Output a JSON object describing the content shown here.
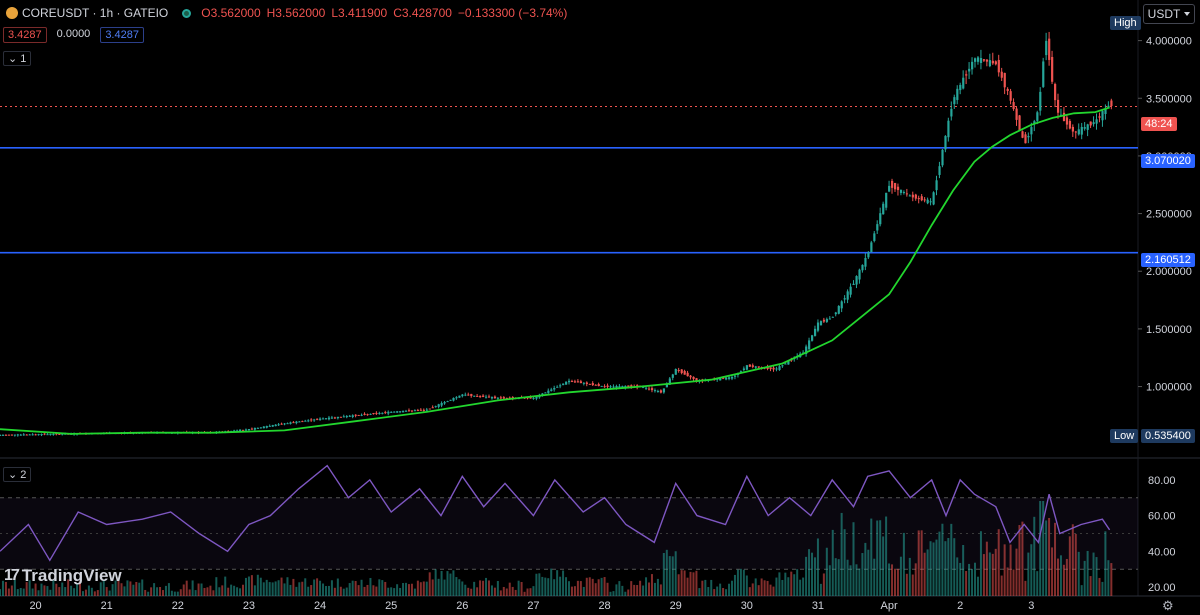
{
  "header": {
    "symbol": "COREUSDT · 1h · GATEIO",
    "open": "O3.562000",
    "high": "H3.562000",
    "low": "L3.411900",
    "close": "C3.428700",
    "change": "−0.133300 (−3.74%)",
    "values": [
      "3.4287",
      "0.0000",
      "3.4287"
    ],
    "pane1_label": "1",
    "pane2_label": "2"
  },
  "currency_label": "USDT",
  "brand": "TradingView",
  "price_tags": {
    "high_label": "High",
    "low_label": "Low",
    "low_value": "0.535400",
    "current_label": "48:24",
    "level1": "3.070020",
    "level2": "2.160512"
  },
  "colors": {
    "up": "#26a69a",
    "down": "#ef5350",
    "ma": "#22d62e",
    "rsi": "#7e57c2",
    "level": "#2962ff"
  },
  "chart_data": [
    {
      "type": "candlestick",
      "x_ticks": [
        "20",
        "21",
        "22",
        "23",
        "24",
        "25",
        "26",
        "27",
        "28",
        "29",
        "30",
        "31",
        "Apr",
        "2",
        "3"
      ],
      "y_ticks": [
        "4.000000",
        "3.500000",
        "3.000000",
        "2.500000",
        "2.000000",
        "1.500000",
        "1.000000"
      ],
      "ylim": [
        0.45,
        4.3
      ],
      "close_path": [
        [
          19.5,
          0.58
        ],
        [
          20.5,
          0.59
        ],
        [
          21.5,
          0.6
        ],
        [
          22.5,
          0.6
        ],
        [
          23.0,
          0.63
        ],
        [
          23.5,
          0.68
        ],
        [
          24.0,
          0.72
        ],
        [
          24.5,
          0.75
        ],
        [
          25.0,
          0.78
        ],
        [
          25.5,
          0.8
        ],
        [
          26.0,
          0.93
        ],
        [
          26.5,
          0.9
        ],
        [
          27.0,
          0.9
        ],
        [
          27.5,
          1.05
        ],
        [
          28.0,
          1.0
        ],
        [
          28.5,
          1.0
        ],
        [
          28.8,
          0.95
        ],
        [
          29.0,
          1.15
        ],
        [
          29.3,
          1.05
        ],
        [
          29.8,
          1.08
        ],
        [
          30.0,
          1.18
        ],
        [
          30.4,
          1.15
        ],
        [
          30.8,
          1.3
        ],
        [
          31.0,
          1.55
        ],
        [
          31.2,
          1.6
        ],
        [
          31.5,
          1.9
        ],
        [
          31.7,
          2.15
        ],
        [
          32.0,
          2.75
        ],
        [
          32.3,
          2.65
        ],
        [
          32.6,
          2.6
        ],
        [
          32.9,
          3.5
        ],
        [
          33.2,
          3.85
        ],
        [
          33.5,
          3.8
        ],
        [
          33.7,
          3.5
        ],
        [
          33.9,
          3.1
        ],
        [
          34.1,
          3.4
        ],
        [
          34.2,
          4.05
        ],
        [
          34.35,
          3.4
        ],
        [
          34.6,
          3.2
        ],
        [
          34.9,
          3.3
        ],
        [
          35.1,
          3.45
        ]
      ],
      "ma_path": [
        [
          19.5,
          0.63
        ],
        [
          20.5,
          0.59
        ],
        [
          21.5,
          0.6
        ],
        [
          22.5,
          0.6
        ],
        [
          23.5,
          0.62
        ],
        [
          24.5,
          0.7
        ],
        [
          25.5,
          0.78
        ],
        [
          26.5,
          0.88
        ],
        [
          27.5,
          0.95
        ],
        [
          28.5,
          1.0
        ],
        [
          29.5,
          1.06
        ],
        [
          30.5,
          1.2
        ],
        [
          31.2,
          1.4
        ],
        [
          31.6,
          1.6
        ],
        [
          32.0,
          1.8
        ],
        [
          32.3,
          2.08
        ],
        [
          32.6,
          2.4
        ],
        [
          32.9,
          2.7
        ],
        [
          33.2,
          2.95
        ],
        [
          33.45,
          3.08
        ],
        [
          33.7,
          3.18
        ],
        [
          34.0,
          3.27
        ],
        [
          34.3,
          3.33
        ],
        [
          34.6,
          3.37
        ],
        [
          34.9,
          3.38
        ],
        [
          35.1,
          3.42
        ]
      ],
      "high": 4.05,
      "low": 0.5354,
      "current": 3.4287,
      "levels": [
        3.07002,
        2.160512
      ]
    },
    {
      "type": "line",
      "name": "2",
      "y_ticks": [
        "80.00",
        "60.00",
        "40.00",
        "20.00"
      ],
      "ylim": [
        15,
        90
      ],
      "band": [
        30,
        70
      ],
      "rsi_path": [
        [
          19.5,
          40
        ],
        [
          19.9,
          55
        ],
        [
          20.2,
          35
        ],
        [
          20.6,
          62
        ],
        [
          21.0,
          55
        ],
        [
          21.5,
          58
        ],
        [
          21.9,
          62
        ],
        [
          22.3,
          50
        ],
        [
          22.7,
          40
        ],
        [
          23.0,
          55
        ],
        [
          23.3,
          60
        ],
        [
          23.7,
          75
        ],
        [
          24.1,
          88
        ],
        [
          24.4,
          70
        ],
        [
          24.7,
          80
        ],
        [
          25.0,
          62
        ],
        [
          25.4,
          75
        ],
        [
          25.7,
          60
        ],
        [
          26.0,
          82
        ],
        [
          26.3,
          65
        ],
        [
          26.6,
          78
        ],
        [
          27.0,
          60
        ],
        [
          27.3,
          80
        ],
        [
          27.7,
          62
        ],
        [
          28.0,
          70
        ],
        [
          28.3,
          55
        ],
        [
          28.7,
          45
        ],
        [
          29.0,
          78
        ],
        [
          29.3,
          60
        ],
        [
          29.7,
          55
        ],
        [
          30.0,
          82
        ],
        [
          30.3,
          60
        ],
        [
          30.6,
          70
        ],
        [
          30.9,
          60
        ],
        [
          31.2,
          80
        ],
        [
          31.5,
          65
        ],
        [
          31.7,
          82
        ],
        [
          32.0,
          85
        ],
        [
          32.3,
          70
        ],
        [
          32.6,
          80
        ],
        [
          32.8,
          60
        ],
        [
          33.0,
          80
        ],
        [
          33.2,
          72
        ],
        [
          33.5,
          65
        ],
        [
          33.7,
          45
        ],
        [
          33.9,
          55
        ],
        [
          34.1,
          45
        ],
        [
          34.25,
          72
        ],
        [
          34.4,
          50
        ],
        [
          34.7,
          55
        ],
        [
          35.0,
          58
        ],
        [
          35.1,
          52
        ]
      ]
    }
  ]
}
